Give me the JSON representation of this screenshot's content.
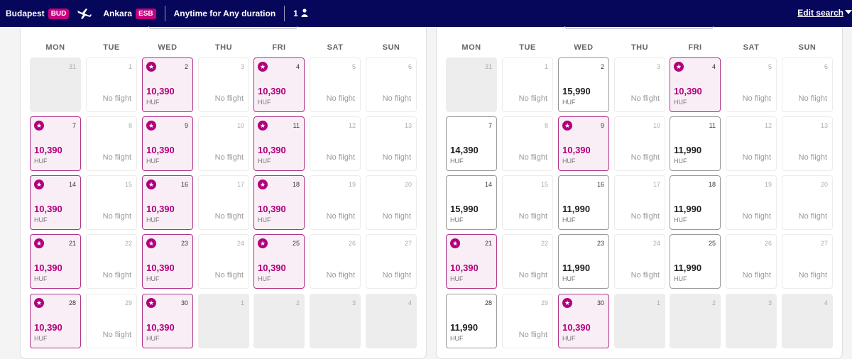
{
  "header": {
    "origin_city": "Budapest",
    "origin_code": "BUD",
    "destination_city": "Ankara",
    "destination_code": "ESB",
    "when": "Anytime for Any duration",
    "passengers": "1",
    "edit_label": "Edit search"
  },
  "colors": {
    "brand_navy": "#06065a",
    "brand_magenta": "#c6007e",
    "best_price": "#b0007a"
  },
  "weekdays": [
    "MON",
    "TUE",
    "WED",
    "THU",
    "FRI",
    "SAT",
    "SUN"
  ],
  "calendars": [
    {
      "name": "outbound",
      "days": [
        {
          "d": "31",
          "s": "empty"
        },
        {
          "d": "1",
          "s": "none"
        },
        {
          "d": "2",
          "s": "best",
          "p": "10,390",
          "c": "HUF"
        },
        {
          "d": "3",
          "s": "none"
        },
        {
          "d": "4",
          "s": "best",
          "p": "10,390",
          "c": "HUF"
        },
        {
          "d": "5",
          "s": "none"
        },
        {
          "d": "6",
          "s": "none"
        },
        {
          "d": "7",
          "s": "best",
          "p": "10,390",
          "c": "HUF"
        },
        {
          "d": "8",
          "s": "none"
        },
        {
          "d": "9",
          "s": "best",
          "p": "10,390",
          "c": "HUF"
        },
        {
          "d": "10",
          "s": "none"
        },
        {
          "d": "11",
          "s": "best",
          "p": "10,390",
          "c": "HUF"
        },
        {
          "d": "12",
          "s": "none"
        },
        {
          "d": "13",
          "s": "none"
        },
        {
          "d": "14",
          "s": "best",
          "p": "10,390",
          "c": "HUF"
        },
        {
          "d": "15",
          "s": "none"
        },
        {
          "d": "16",
          "s": "best",
          "p": "10,390",
          "c": "HUF"
        },
        {
          "d": "17",
          "s": "none"
        },
        {
          "d": "18",
          "s": "best",
          "p": "10,390",
          "c": "HUF"
        },
        {
          "d": "19",
          "s": "none"
        },
        {
          "d": "20",
          "s": "none"
        },
        {
          "d": "21",
          "s": "best",
          "p": "10,390",
          "c": "HUF"
        },
        {
          "d": "22",
          "s": "none"
        },
        {
          "d": "23",
          "s": "best",
          "p": "10,390",
          "c": "HUF"
        },
        {
          "d": "24",
          "s": "none"
        },
        {
          "d": "25",
          "s": "best",
          "p": "10,390",
          "c": "HUF"
        },
        {
          "d": "26",
          "s": "none"
        },
        {
          "d": "27",
          "s": "none"
        },
        {
          "d": "28",
          "s": "best",
          "p": "10,390",
          "c": "HUF"
        },
        {
          "d": "29",
          "s": "none"
        },
        {
          "d": "30",
          "s": "best",
          "p": "10,390",
          "c": "HUF"
        },
        {
          "d": "1",
          "s": "empty"
        },
        {
          "d": "2",
          "s": "empty"
        },
        {
          "d": "3",
          "s": "empty"
        },
        {
          "d": "4",
          "s": "empty"
        }
      ]
    },
    {
      "name": "return",
      "days": [
        {
          "d": "31",
          "s": "empty"
        },
        {
          "d": "1",
          "s": "none"
        },
        {
          "d": "2",
          "s": "price",
          "p": "15,990",
          "c": "HUF"
        },
        {
          "d": "3",
          "s": "none"
        },
        {
          "d": "4",
          "s": "best",
          "p": "10,390",
          "c": "HUF"
        },
        {
          "d": "5",
          "s": "none"
        },
        {
          "d": "6",
          "s": "none"
        },
        {
          "d": "7",
          "s": "price",
          "p": "14,390",
          "c": "HUF"
        },
        {
          "d": "8",
          "s": "none"
        },
        {
          "d": "9",
          "s": "best",
          "p": "10,390",
          "c": "HUF"
        },
        {
          "d": "10",
          "s": "none"
        },
        {
          "d": "11",
          "s": "price",
          "p": "11,990",
          "c": "HUF"
        },
        {
          "d": "12",
          "s": "none"
        },
        {
          "d": "13",
          "s": "none"
        },
        {
          "d": "14",
          "s": "price",
          "p": "15,990",
          "c": "HUF"
        },
        {
          "d": "15",
          "s": "none"
        },
        {
          "d": "16",
          "s": "price",
          "p": "11,990",
          "c": "HUF"
        },
        {
          "d": "17",
          "s": "none"
        },
        {
          "d": "18",
          "s": "price",
          "p": "11,990",
          "c": "HUF"
        },
        {
          "d": "19",
          "s": "none"
        },
        {
          "d": "20",
          "s": "none"
        },
        {
          "d": "21",
          "s": "best",
          "p": "10,390",
          "c": "HUF"
        },
        {
          "d": "22",
          "s": "none"
        },
        {
          "d": "23",
          "s": "price",
          "p": "11,990",
          "c": "HUF"
        },
        {
          "d": "24",
          "s": "none"
        },
        {
          "d": "25",
          "s": "price",
          "p": "11,990",
          "c": "HUF"
        },
        {
          "d": "26",
          "s": "none"
        },
        {
          "d": "27",
          "s": "none"
        },
        {
          "d": "28",
          "s": "price",
          "p": "11,990",
          "c": "HUF"
        },
        {
          "d": "29",
          "s": "none"
        },
        {
          "d": "30",
          "s": "best",
          "p": "10,390",
          "c": "HUF"
        },
        {
          "d": "1",
          "s": "empty"
        },
        {
          "d": "2",
          "s": "empty"
        },
        {
          "d": "3",
          "s": "empty"
        },
        {
          "d": "4",
          "s": "empty"
        }
      ]
    }
  ],
  "no_flight_label": "No flight"
}
